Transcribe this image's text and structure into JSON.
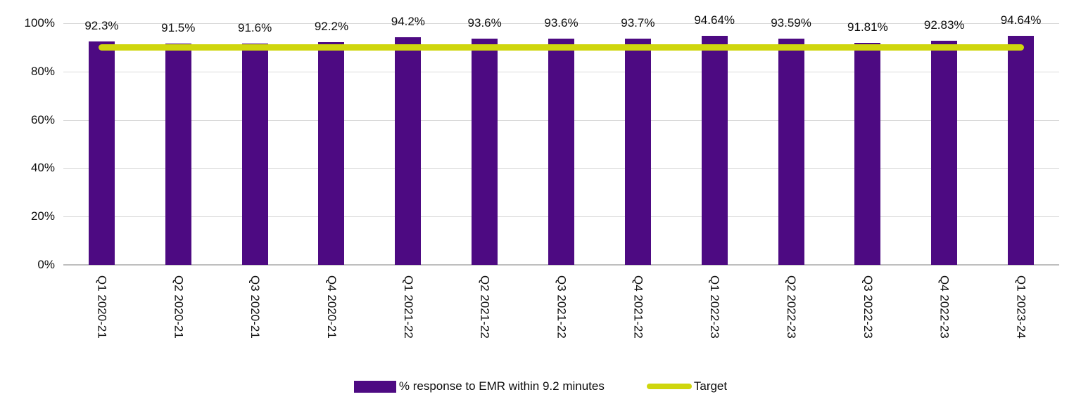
{
  "chart_data": {
    "type": "bar",
    "title": "",
    "categories": [
      "Q1 2020-21",
      "Q2 2020-21",
      "Q3 2020-21",
      "Q4 2020-21",
      "Q1 2021-22",
      "Q2 2021-22",
      "Q3 2021-22",
      "Q4 2021-22",
      "Q1 2022-23",
      "Q2 2022-23",
      "Q3 2022-23",
      "Q4 2022-23",
      "Q1 2023-24"
    ],
    "series": [
      {
        "name": "% response to EMR within 9.2 minutes",
        "type": "bar",
        "color": "#4d0a82",
        "values": [
          92.3,
          91.5,
          91.6,
          92.2,
          94.2,
          93.6,
          93.6,
          93.7,
          94.64,
          93.59,
          91.81,
          92.83,
          94.64
        ],
        "data_labels": [
          "92.3%",
          "91.5%",
          "91.6%",
          "92.2%",
          "94.2%",
          "93.6%",
          "93.6%",
          "93.7%",
          "94.64%",
          "93.59%",
          "91.81%",
          "92.83%",
          "94.64%"
        ]
      },
      {
        "name": "Target",
        "type": "line",
        "color": "#cfd60d",
        "value": 90
      }
    ],
    "xlabel": "",
    "ylabel": "",
    "ylim": [
      0,
      100
    ],
    "yticks": [
      {
        "label": "0%",
        "value": 0
      },
      {
        "label": "20%",
        "value": 20
      },
      {
        "label": "40%",
        "value": 40
      },
      {
        "label": "60%",
        "value": 60
      },
      {
        "label": "80%",
        "value": 80
      },
      {
        "label": "100%",
        "value": 100
      }
    ],
    "grid": true,
    "legend_position": "bottom"
  }
}
